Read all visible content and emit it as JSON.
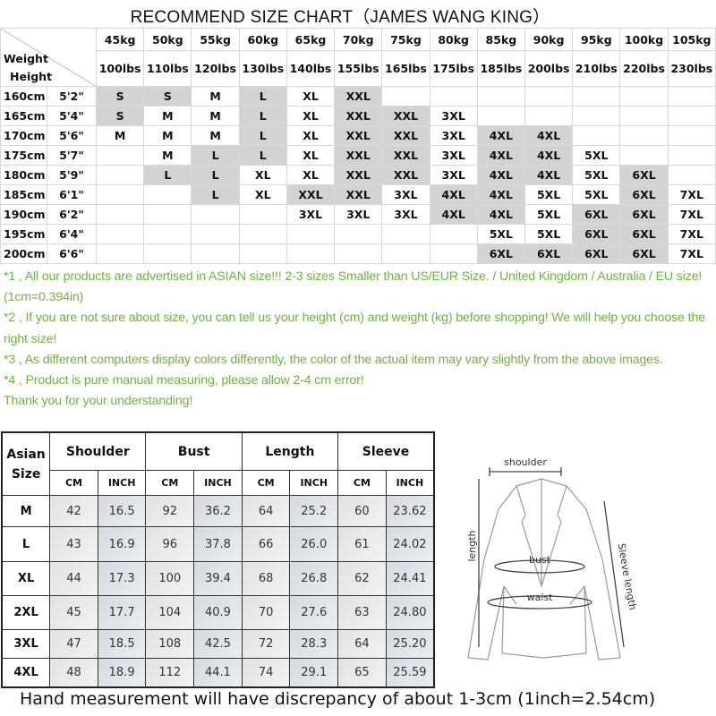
{
  "title": "RECOMMEND SIZE CHART（JAMES WANG KING）",
  "size_chart": {
    "corner_weight": "Weight",
    "corner_height": "Height",
    "weights_kg": [
      "45kg",
      "50kg",
      "55kg",
      "60kg",
      "65kg",
      "70kg",
      "75kg",
      "80kg",
      "85kg",
      "90kg",
      "95kg",
      "100kg",
      "105kg"
    ],
    "weights_lbs": [
      "100lbs",
      "110lbs",
      "120lbs",
      "130lbs",
      "140lbs",
      "155lbs",
      "165lbs",
      "175lbs",
      "185lbs",
      "200lbs",
      "210lbs",
      "220lbs",
      "230lbs"
    ],
    "shade_color": "#d3d3d3",
    "rows": [
      {
        "cm": "160cm",
        "ft": "5'2\"",
        "sizes": [
          "S",
          "S",
          "M",
          "L",
          "XL",
          "XXL",
          "",
          "",
          "",
          "",
          "",
          "",
          ""
        ],
        "shaded": [
          1,
          1,
          0,
          1,
          0,
          1,
          0,
          0,
          0,
          0,
          0,
          0,
          0
        ]
      },
      {
        "cm": "165cm",
        "ft": "5'4\"",
        "sizes": [
          "S",
          "M",
          "M",
          "L",
          "XL",
          "XXL",
          "XXL",
          "3XL",
          "",
          "",
          "",
          "",
          ""
        ],
        "shaded": [
          1,
          0,
          0,
          1,
          0,
          1,
          1,
          0,
          0,
          0,
          0,
          0,
          0
        ]
      },
      {
        "cm": "170cm",
        "ft": "5'6\"",
        "sizes": [
          "M",
          "M",
          "M",
          "L",
          "XL",
          "XXL",
          "XXL",
          "3XL",
          "4XL",
          "4XL",
          "",
          "",
          ""
        ],
        "shaded": [
          0,
          0,
          0,
          1,
          0,
          1,
          1,
          0,
          1,
          1,
          0,
          0,
          0
        ]
      },
      {
        "cm": "175cm",
        "ft": "5'7\"",
        "sizes": [
          "",
          "M",
          "L",
          "L",
          "XL",
          "XXL",
          "XXL",
          "3XL",
          "4XL",
          "4XL",
          "5XL",
          "",
          ""
        ],
        "shaded": [
          0,
          0,
          1,
          1,
          0,
          1,
          1,
          0,
          1,
          1,
          0,
          0,
          0
        ]
      },
      {
        "cm": "180cm",
        "ft": "5'9\"",
        "sizes": [
          "",
          "L",
          "L",
          "XL",
          "XL",
          "XXL",
          "XXL",
          "3XL",
          "4XL",
          "4XL",
          "5XL",
          "6XL",
          ""
        ],
        "shaded": [
          0,
          1,
          1,
          0,
          0,
          1,
          1,
          0,
          1,
          1,
          0,
          1,
          0
        ]
      },
      {
        "cm": "185cm",
        "ft": "6'1\"",
        "sizes": [
          "",
          "",
          "L",
          "XL",
          "XXL",
          "XXL",
          "3XL",
          "4XL",
          "4XL",
          "5XL",
          "5XL",
          "6XL",
          "7XL"
        ],
        "shaded": [
          0,
          0,
          1,
          0,
          1,
          1,
          0,
          1,
          1,
          0,
          0,
          1,
          0
        ]
      },
      {
        "cm": "190cm",
        "ft": "6'2\"",
        "sizes": [
          "",
          "",
          "",
          "",
          "3XL",
          "3XL",
          "3XL",
          "4XL",
          "4XL",
          "5XL",
          "6XL",
          "6XL",
          "7XL"
        ],
        "shaded": [
          0,
          0,
          0,
          0,
          0,
          0,
          0,
          1,
          1,
          0,
          1,
          1,
          0
        ]
      },
      {
        "cm": "195cm",
        "ft": "6'4\"",
        "sizes": [
          "",
          "",
          "",
          "",
          "",
          "",
          "",
          "",
          "5XL",
          "5XL",
          "6XL",
          "6XL",
          "7XL"
        ],
        "shaded": [
          0,
          0,
          0,
          0,
          0,
          0,
          0,
          0,
          0,
          0,
          1,
          1,
          0
        ]
      },
      {
        "cm": "200cm",
        "ft": "6'6\"",
        "sizes": [
          "",
          "",
          "",
          "",
          "",
          "",
          "",
          "",
          "6XL",
          "6XL",
          "6XL",
          "6XL",
          "7XL"
        ],
        "shaded": [
          0,
          0,
          0,
          0,
          0,
          0,
          0,
          0,
          1,
          1,
          1,
          1,
          0
        ]
      }
    ]
  },
  "notes": {
    "color": "#6db33f",
    "lines": [
      "*1 , All our products are advertised in ASIAN size!!! 2-3 sizes Smaller than US/EUR Size. / United Kingdom / Australia / EU size! (1cm=0.394in)",
      "*2 , If you are not sure about size, you can tell us your height (cm) and weight (kg) before shopping! We will help you choose the right size!",
      "*3 , As different computers display colors differently, the color of the actual item may vary slightly from the above images.",
      "*4 , Product is pure manual measuring, please allow 2-4 cm error!",
      "Thank you for your understanding!"
    ]
  },
  "measure_table": {
    "size_header_1": "Asian",
    "size_header_2": "Size",
    "groups": [
      "Shoulder",
      "Bust",
      "Length",
      "Sleeve"
    ],
    "units": [
      "CM",
      "INCH"
    ],
    "rows": [
      {
        "size": "M",
        "values": [
          "42",
          "16.5",
          "92",
          "36.2",
          "64",
          "25.2",
          "60",
          "23.62"
        ]
      },
      {
        "size": "L",
        "values": [
          "43",
          "16.9",
          "96",
          "37.8",
          "66",
          "26.0",
          "61",
          "24.02"
        ]
      },
      {
        "size": "XL",
        "values": [
          "44",
          "17.3",
          "100",
          "39.4",
          "68",
          "26.8",
          "62",
          "24.41"
        ]
      },
      {
        "size": "2XL",
        "values": [
          "45",
          "17.7",
          "104",
          "40.9",
          "70",
          "27.6",
          "63",
          "24.80"
        ]
      },
      {
        "size": "3XL",
        "values": [
          "47",
          "18.5",
          "108",
          "42.5",
          "72",
          "28.3",
          "64",
          "25.20"
        ]
      },
      {
        "size": "4XL",
        "values": [
          "48",
          "18.9",
          "112",
          "44.1",
          "74",
          "29.1",
          "65",
          "25.59"
        ]
      }
    ]
  },
  "diagram": {
    "shoulder": "shoulder",
    "length": "length",
    "bust": "bust",
    "waist": "waist",
    "sleeve": "Sleeve length"
  },
  "footer": "Hand measurement will have discrepancy of about 1-3cm (1inch=2.54cm)"
}
